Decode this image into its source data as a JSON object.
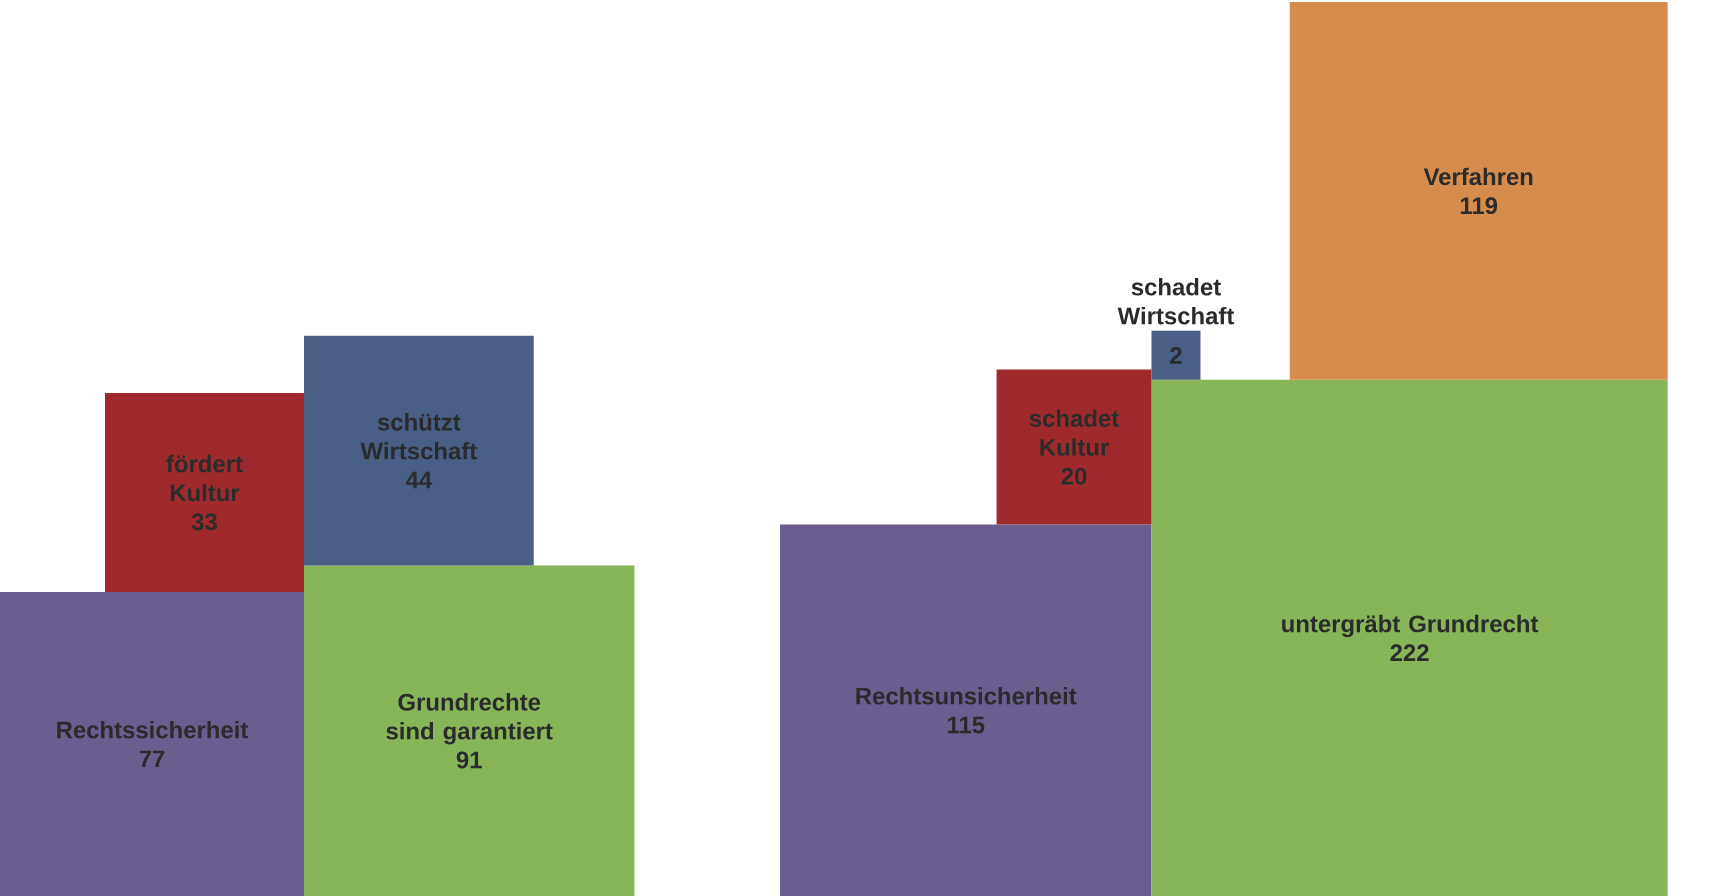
{
  "chart_data": [
    {
      "type": "other",
      "data_labels": true,
      "categories": [
        "Rechtssicherheit",
        "Grundrechte sind garantiert",
        "fördert Kultur",
        "schützt Wirtschaft"
      ],
      "values": [
        77,
        91,
        33,
        44
      ],
      "colors": [
        "#6b5e8f",
        "#88b558",
        "#9e2a2e",
        "#4a5f85"
      ]
    },
    {
      "type": "other",
      "data_labels": true,
      "categories": [
        "Rechtsunsicherheit",
        "untergräbt Grundrecht",
        "schadet Kultur",
        "schadet Wirtschaft",
        "Verfahren"
      ],
      "values": [
        115,
        222,
        20,
        2,
        119
      ],
      "colors": [
        "#6b5e8f",
        "#88b558",
        "#9e2a2e",
        "#4a5f85",
        "#d68c4d"
      ]
    }
  ]
}
